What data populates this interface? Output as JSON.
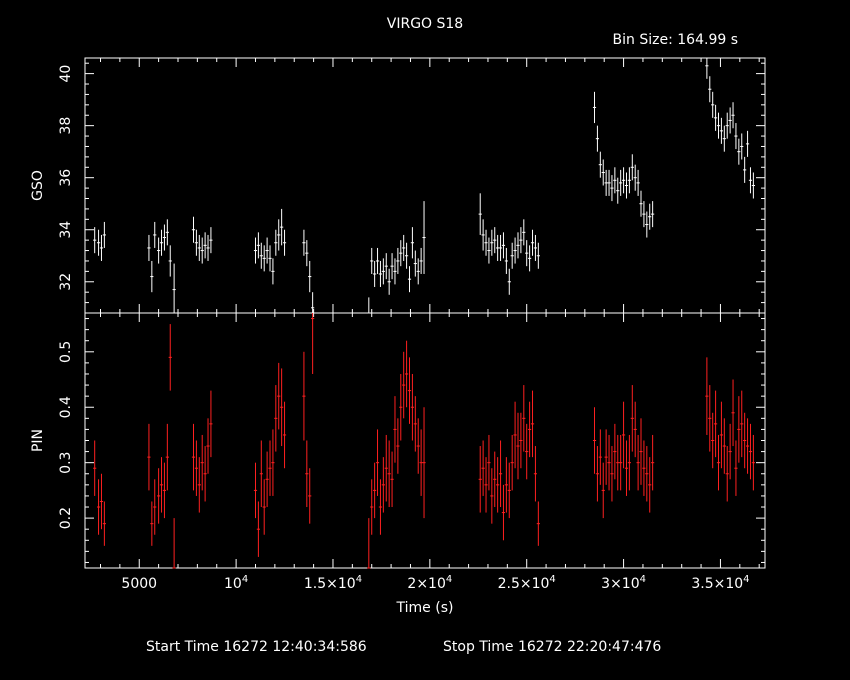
{
  "title": "VIRGO S18",
  "bin_size_label": "Bin Size:  164.99  s",
  "footer": {
    "start_label": "Start Time 16272  12:40:34:586",
    "stop_label": "Stop Time 16272  22:20:47:476"
  },
  "colors": {
    "background": "#000000",
    "axes": "#ffffff",
    "gso": "#ffffff",
    "pin": "#ff2020"
  },
  "chart_data": [
    {
      "type": "scatter",
      "ylabel": "GSO",
      "xlim": [
        2200,
        37300
      ],
      "ylim": [
        30.8,
        40.6
      ],
      "yticks": [
        32,
        34,
        36,
        38,
        40
      ],
      "x": [
        2700,
        2900,
        3050,
        3200,
        5500,
        5650,
        5800,
        6000,
        6150,
        6300,
        6450,
        6600,
        6800,
        7800,
        7950,
        8100,
        8250,
        8400,
        8550,
        8700,
        11000,
        11150,
        11300,
        11450,
        11600,
        11750,
        11900,
        12050,
        12200,
        12350,
        12500,
        13500,
        13650,
        13800,
        13950,
        16850,
        17000,
        17150,
        17300,
        17450,
        17600,
        17750,
        17900,
        18050,
        18200,
        18350,
        18500,
        18650,
        18800,
        18950,
        19100,
        19250,
        19400,
        19550,
        19700,
        22600,
        22750,
        22900,
        23050,
        23200,
        23350,
        23500,
        23650,
        23800,
        23950,
        24100,
        24250,
        24400,
        24550,
        24700,
        24850,
        25000,
        25150,
        25300,
        25450,
        25600,
        28500,
        28650,
        28800,
        28950,
        29100,
        29250,
        29400,
        29550,
        29700,
        29850,
        30000,
        30150,
        30300,
        30450,
        30600,
        30750,
        30900,
        31050,
        31200,
        31350,
        31500,
        34300,
        34450,
        34600,
        34750,
        34900,
        35050,
        35200,
        35350,
        35500,
        35650,
        35800,
        35950,
        36100,
        36250,
        36400,
        36550,
        36700
      ],
      "y": [
        33.6,
        33.5,
        33.3,
        33.8,
        33.3,
        32.2,
        33.8,
        33.2,
        33.5,
        33.7,
        33.9,
        32.8,
        31.7,
        34.0,
        33.5,
        33.3,
        33.2,
        33.4,
        33.3,
        33.6,
        33.2,
        33.4,
        33.0,
        32.9,
        33.2,
        32.9,
        32.4,
        33.5,
        33.8,
        34.1,
        33.5,
        33.5,
        33.1,
        32.2,
        31.0,
        30.8,
        32.8,
        32.3,
        32.8,
        32.3,
        32.4,
        32.6,
        32.0,
        32.6,
        32.4,
        32.8,
        33.1,
        33.3,
        33.0,
        32.1,
        33.5,
        32.7,
        32.4,
        32.8,
        33.7,
        34.6,
        33.8,
        33.5,
        33.2,
        33.5,
        33.6,
        33.3,
        33.3,
        33.4,
        32.8,
        32.0,
        33.0,
        33.2,
        33.4,
        33.6,
        33.9,
        33.1,
        32.9,
        33.5,
        33.3,
        33.0,
        38.7,
        37.5,
        36.5,
        36.2,
        35.8,
        35.8,
        35.6,
        35.9,
        35.5,
        35.8,
        35.9,
        35.7,
        35.9,
        36.4,
        36.0,
        35.8,
        35.0,
        34.6,
        34.2,
        34.5,
        34.6,
        40.3,
        39.4,
        38.8,
        38.3,
        38.0,
        37.8,
        37.5,
        38.0,
        38.2,
        38.4,
        37.6,
        37.0,
        37.2,
        36.3,
        37.3,
        35.9,
        35.7
      ],
      "yerr": [
        0.5,
        0.5,
        0.5,
        0.5,
        0.5,
        0.6,
        0.5,
        0.5,
        0.5,
        0.5,
        0.5,
        0.6,
        1.0,
        0.5,
        0.5,
        0.5,
        0.5,
        0.5,
        0.5,
        0.5,
        0.5,
        0.5,
        0.5,
        0.5,
        0.5,
        0.5,
        0.5,
        0.5,
        0.6,
        0.7,
        0.5,
        0.5,
        0.5,
        0.6,
        0.6,
        0.6,
        0.5,
        0.5,
        0.5,
        0.5,
        0.5,
        0.5,
        0.5,
        0.5,
        0.5,
        0.5,
        0.5,
        0.5,
        0.5,
        0.5,
        0.6,
        0.5,
        0.5,
        0.5,
        1.4,
        0.8,
        0.6,
        0.5,
        0.5,
        0.5,
        0.5,
        0.5,
        0.5,
        0.5,
        0.5,
        0.5,
        0.5,
        0.5,
        0.5,
        0.5,
        0.5,
        0.5,
        0.5,
        0.5,
        0.5,
        0.5,
        0.6,
        0.5,
        0.5,
        0.5,
        0.5,
        0.5,
        0.5,
        0.5,
        0.5,
        0.5,
        0.5,
        0.5,
        0.5,
        0.5,
        0.5,
        0.5,
        0.5,
        0.5,
        0.5,
        0.5,
        0.5,
        0.5,
        0.5,
        0.5,
        0.5,
        0.5,
        0.5,
        0.5,
        0.5,
        0.5,
        0.5,
        0.5,
        0.5,
        0.5,
        0.5,
        0.5,
        0.5,
        0.5
      ]
    },
    {
      "type": "scatter",
      "ylabel": "PIN",
      "xlabel": "Time (s)",
      "xlim": [
        2200,
        37300
      ],
      "ylim": [
        0.11,
        0.57
      ],
      "yticks": [
        0.2,
        0.3,
        0.4,
        0.5
      ],
      "xticks": [
        5000,
        10000,
        15000,
        20000,
        25000,
        30000,
        35000
      ],
      "xtick_labels": [
        {
          "m": "5000",
          "e": ""
        },
        {
          "m": "10",
          "e": "4"
        },
        {
          "m": "1.5×10",
          "e": "4"
        },
        {
          "m": "2×10",
          "e": "4"
        },
        {
          "m": "2.5×10",
          "e": "4"
        },
        {
          "m": "3×10",
          "e": "4"
        },
        {
          "m": "3.5×10",
          "e": "4"
        }
      ],
      "x": [
        2700,
        2900,
        3050,
        3200,
        5500,
        5650,
        5800,
        6000,
        6150,
        6300,
        6450,
        6600,
        6800,
        7800,
        7950,
        8100,
        8250,
        8400,
        8550,
        8700,
        11000,
        11150,
        11300,
        11450,
        11600,
        11750,
        11900,
        12050,
        12200,
        12350,
        12500,
        13500,
        13650,
        13800,
        13950,
        16850,
        17000,
        17150,
        17300,
        17450,
        17600,
        17750,
        17900,
        18050,
        18200,
        18350,
        18500,
        18650,
        18800,
        18950,
        19100,
        19250,
        19400,
        19550,
        19700,
        22600,
        22750,
        22900,
        23050,
        23200,
        23350,
        23500,
        23650,
        23800,
        23950,
        24100,
        24250,
        24400,
        24550,
        24700,
        24850,
        25000,
        25150,
        25300,
        25450,
        25600,
        28500,
        28650,
        28800,
        28950,
        29100,
        29250,
        29400,
        29550,
        29700,
        29850,
        30000,
        30150,
        30300,
        30450,
        30600,
        30750,
        30900,
        31050,
        31200,
        31350,
        31500,
        34300,
        34450,
        34600,
        34750,
        34900,
        35050,
        35200,
        35350,
        35500,
        35650,
        35800,
        35950,
        36100,
        36250,
        36400,
        36550,
        36700
      ],
      "y": [
        0.29,
        0.22,
        0.23,
        0.19,
        0.31,
        0.19,
        0.22,
        0.24,
        0.26,
        0.25,
        0.31,
        0.49,
        0.11,
        0.31,
        0.29,
        0.26,
        0.3,
        0.28,
        0.33,
        0.37,
        0.25,
        0.18,
        0.28,
        0.22,
        0.27,
        0.29,
        0.3,
        0.38,
        0.42,
        0.4,
        0.35,
        0.42,
        0.28,
        0.24,
        0.56,
        0.11,
        0.22,
        0.25,
        0.3,
        0.22,
        0.26,
        0.29,
        0.28,
        0.27,
        0.36,
        0.33,
        0.4,
        0.44,
        0.46,
        0.43,
        0.4,
        0.37,
        0.33,
        0.3,
        0.3,
        0.27,
        0.29,
        0.26,
        0.3,
        0.24,
        0.27,
        0.26,
        0.28,
        0.21,
        0.26,
        0.25,
        0.3,
        0.35,
        0.33,
        0.34,
        0.38,
        0.32,
        0.36,
        0.37,
        0.28,
        0.19,
        0.34,
        0.28,
        0.31,
        0.25,
        0.31,
        0.3,
        0.28,
        0.32,
        0.3,
        0.3,
        0.35,
        0.29,
        0.3,
        0.38,
        0.36,
        0.3,
        0.32,
        0.29,
        0.28,
        0.26,
        0.3,
        0.42,
        0.38,
        0.34,
        0.37,
        0.3,
        0.35,
        0.33,
        0.28,
        0.32,
        0.39,
        0.29,
        0.36,
        0.37,
        0.34,
        0.33,
        0.32,
        0.3
      ],
      "yerr": [
        0.05,
        0.05,
        0.05,
        0.04,
        0.06,
        0.04,
        0.05,
        0.05,
        0.05,
        0.05,
        0.06,
        0.06,
        0.09,
        0.06,
        0.05,
        0.05,
        0.05,
        0.05,
        0.05,
        0.06,
        0.05,
        0.05,
        0.06,
        0.05,
        0.05,
        0.05,
        0.06,
        0.06,
        0.06,
        0.07,
        0.06,
        0.08,
        0.06,
        0.05,
        0.1,
        0.09,
        0.05,
        0.05,
        0.06,
        0.05,
        0.05,
        0.06,
        0.06,
        0.05,
        0.06,
        0.05,
        0.06,
        0.06,
        0.06,
        0.06,
        0.06,
        0.05,
        0.05,
        0.06,
        0.1,
        0.06,
        0.05,
        0.05,
        0.05,
        0.05,
        0.05,
        0.05,
        0.06,
        0.05,
        0.05,
        0.05,
        0.05,
        0.06,
        0.06,
        0.05,
        0.06,
        0.05,
        0.05,
        0.06,
        0.05,
        0.04,
        0.06,
        0.05,
        0.05,
        0.05,
        0.05,
        0.05,
        0.05,
        0.05,
        0.05,
        0.05,
        0.06,
        0.05,
        0.05,
        0.06,
        0.05,
        0.05,
        0.06,
        0.05,
        0.05,
        0.05,
        0.05,
        0.07,
        0.06,
        0.05,
        0.06,
        0.05,
        0.06,
        0.05,
        0.05,
        0.05,
        0.06,
        0.05,
        0.06,
        0.06,
        0.05,
        0.05,
        0.05,
        0.05
      ]
    }
  ]
}
